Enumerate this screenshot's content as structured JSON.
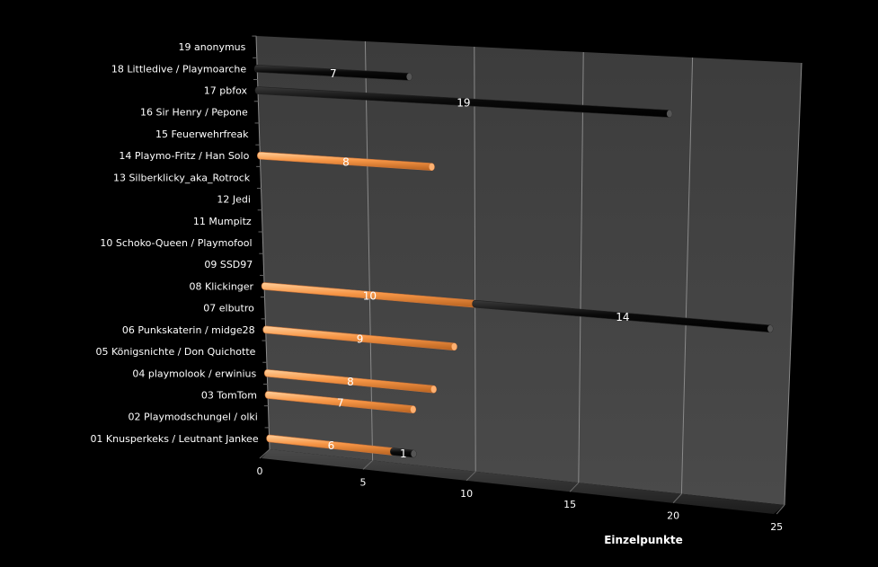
{
  "chart_data": {
    "type": "bar",
    "orientation": "horizontal",
    "stacked": true,
    "style": "3d",
    "xlabel": "Einzelpunkte",
    "xlim": [
      0,
      25
    ],
    "xticks": [
      0,
      5,
      10,
      15,
      20,
      25
    ],
    "grid": true,
    "categories": [
      "01 Knusperkeks / Leutnant Jankee",
      "02 Playmodschungel / olki",
      "03 TomTom",
      "04 playmolook / erwinius",
      "05 Königsnichte / Don Quichotte",
      "06 Punkskaterin / midge28",
      "07 elbutro",
      "08 Klickinger",
      "09 SSD97",
      "10 Schoko-Queen / Playmofool",
      "11 Mumpitz",
      "12 Jedi",
      "13 Silberklicky_aka_Rotrock",
      "14 Playmo-Fritz / Han Solo",
      "15 Feuerwehrfreak",
      "16 Sir Henry / Pepone",
      "17 pbfox",
      "18 Littledive / Playmoarche",
      "19 anonymus"
    ],
    "series": [
      {
        "color": "#f79646",
        "values": [
          6,
          null,
          7,
          8,
          null,
          9,
          null,
          10,
          null,
          null,
          null,
          null,
          null,
          8,
          null,
          null,
          null,
          null,
          null
        ]
      },
      {
        "color": "#111111",
        "values": [
          1,
          null,
          null,
          null,
          null,
          null,
          null,
          14,
          null,
          null,
          null,
          null,
          null,
          null,
          null,
          null,
          19,
          7,
          null
        ]
      }
    ]
  }
}
